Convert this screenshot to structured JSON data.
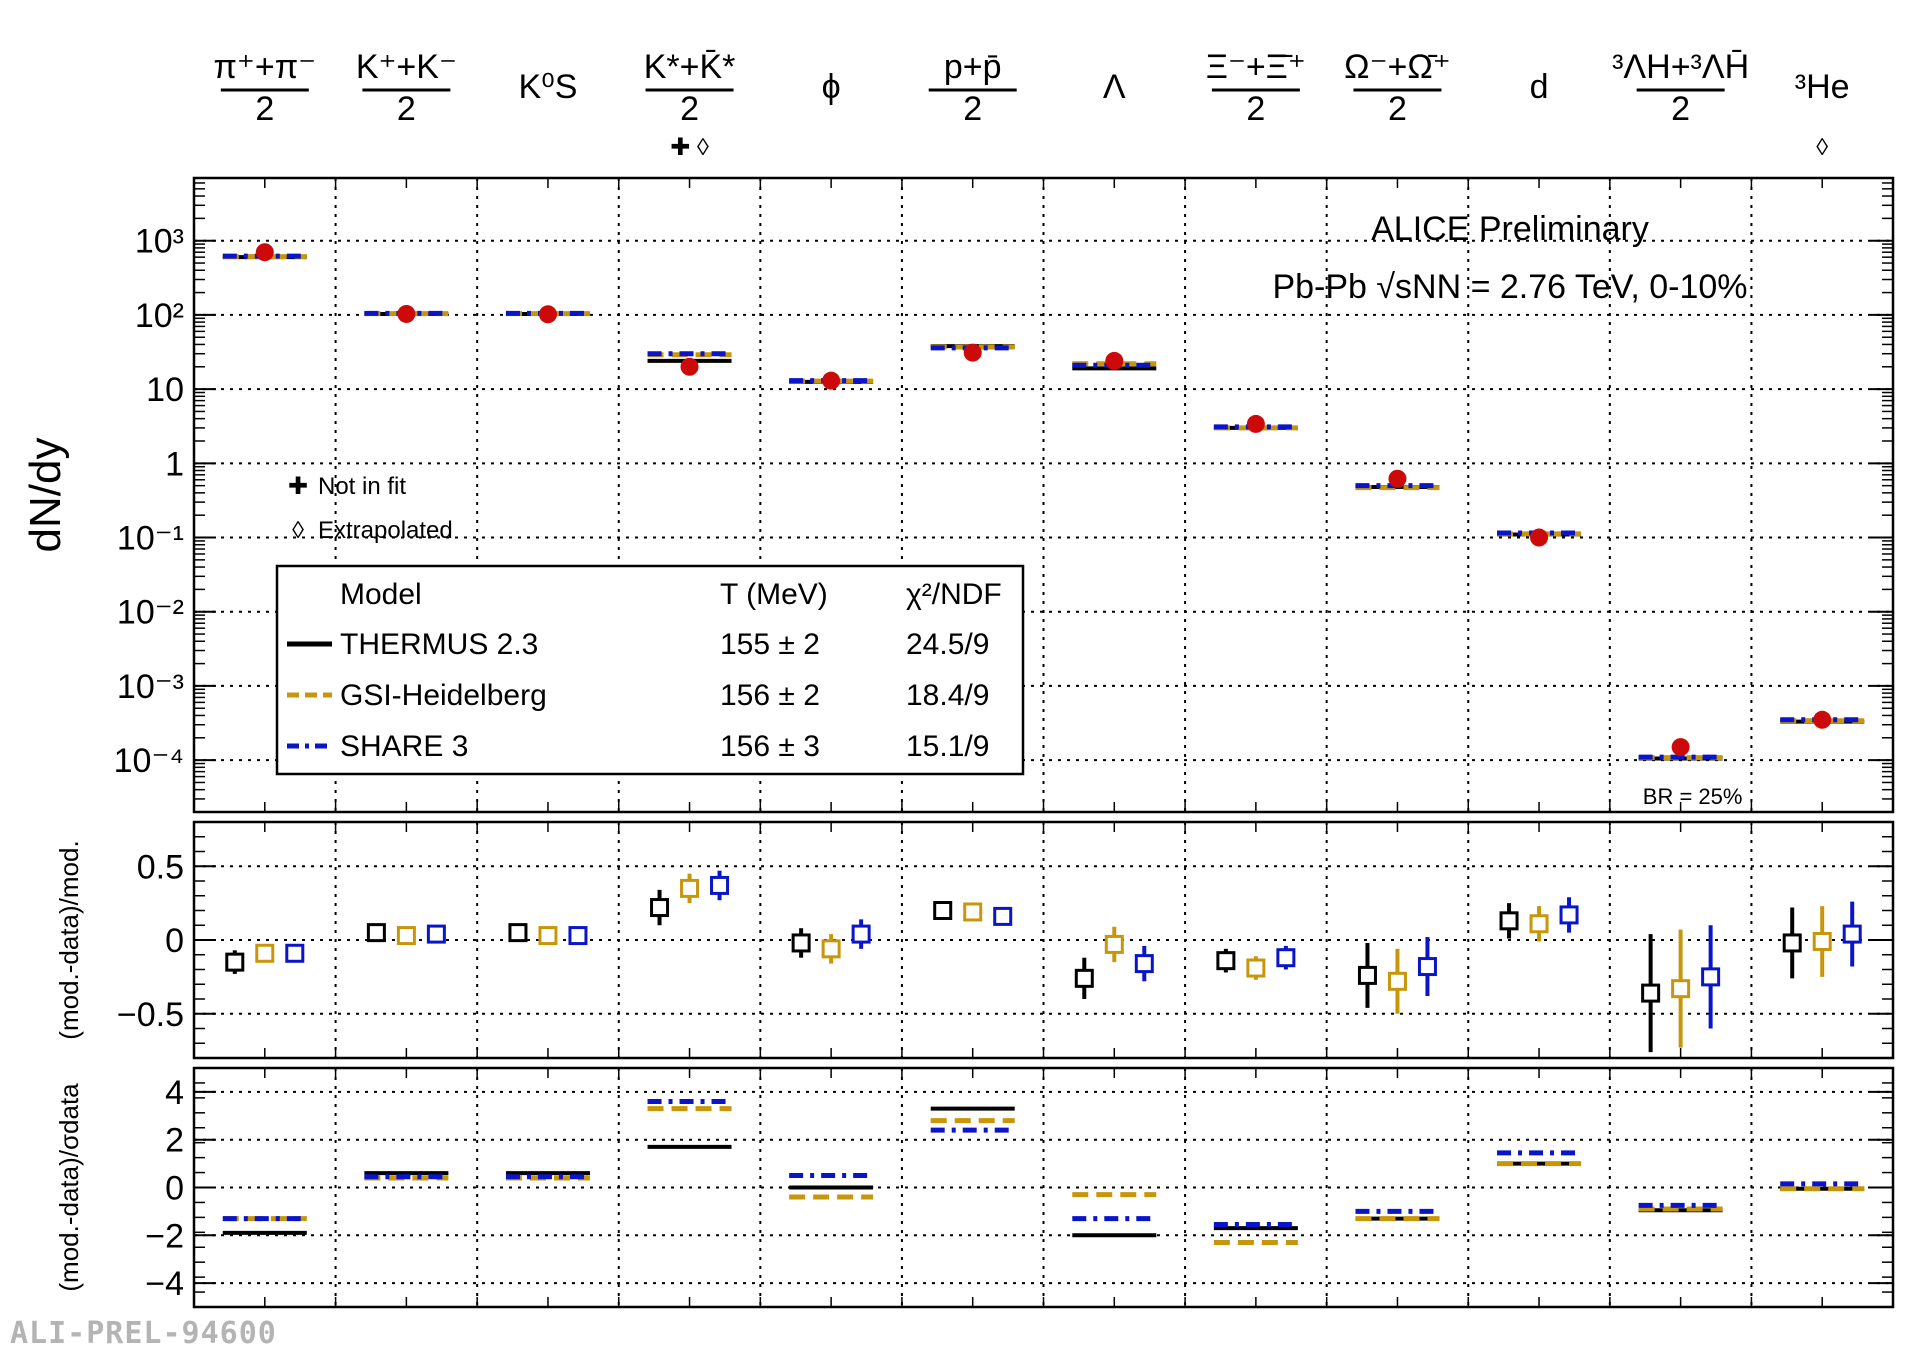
{
  "chart_data": {
    "type": "scatter",
    "categories": [
      {
        "top": "π⁺+π⁻",
        "bottom": "2",
        "frac": true,
        "markers": ""
      },
      {
        "top": "K⁺+K⁻",
        "bottom": "2",
        "frac": true,
        "markers": ""
      },
      {
        "top": "K⁰S",
        "bottom": "",
        "frac": false,
        "markers": ""
      },
      {
        "top": "K*+K̄*",
        "bottom": "2",
        "frac": true,
        "markers": "✚ ◊"
      },
      {
        "top": "ϕ",
        "bottom": "",
        "frac": false,
        "markers": ""
      },
      {
        "top": "p+p̄",
        "bottom": "2",
        "frac": true,
        "markers": ""
      },
      {
        "top": "Λ",
        "bottom": "",
        "frac": false,
        "markers": ""
      },
      {
        "top": "Ξ⁻+Ξ̄⁺",
        "bottom": "2",
        "frac": true,
        "markers": ""
      },
      {
        "top": "Ω⁻+Ω̄⁺",
        "bottom": "2",
        "frac": true,
        "markers": ""
      },
      {
        "top": "d",
        "bottom": "",
        "frac": false,
        "markers": ""
      },
      {
        "top": "³ΛH+³ΛH̄",
        "bottom": "2",
        "frac": true,
        "markers": ""
      },
      {
        "top": "³He",
        "bottom": "",
        "frac": false,
        "markers": "◊"
      }
    ],
    "title_lines": [
      "ALICE Preliminary",
      "Pb-Pb √sNN = 2.76 TeV, 0-10%"
    ],
    "panels": [
      {
        "id": "yields",
        "ylabel": "dN/dy",
        "yscale": "log",
        "ylim": [
          2e-05,
          7000
        ],
        "yticks": [
          [
            "10³",
            1000
          ],
          [
            "10²",
            100
          ],
          [
            "10",
            10
          ],
          [
            "1",
            1
          ],
          [
            "10⁻¹",
            0.1
          ],
          [
            "10⁻²",
            0.01
          ],
          [
            "10⁻³",
            0.001
          ],
          [
            "10⁻⁴",
            0.0001
          ]
        ],
        "data": [
          700,
          103,
          102,
          20,
          13,
          31,
          24,
          3.4,
          0.62,
          0.1,
          0.00015,
          0.00035
        ],
        "models": {
          "THERMUS 2.3": [
            600,
            103,
            103,
            24,
            12.5,
            38,
            19,
            3.0,
            0.48,
            0.11,
            0.000105,
            0.00033
          ],
          "GSI-Heidelberg": [
            610,
            104,
            104,
            29,
            12.8,
            37,
            22,
            3.0,
            0.47,
            0.112,
            0.000108,
            0.00034
          ],
          "SHARE 3": [
            620,
            105,
            105,
            30,
            13.0,
            36,
            21,
            3.1,
            0.5,
            0.115,
            0.00011,
            0.00035
          ]
        },
        "annotation": "BR = 25%"
      },
      {
        "id": "ratio",
        "ylabel": "(mod.-data)/mod.",
        "yscale": "linear",
        "ylim": [
          -0.8,
          0.8
        ],
        "yticks": [
          [
            "0.5",
            0.5
          ],
          [
            "0",
            0
          ],
          [
            "−0.5",
            -0.5
          ]
        ],
        "models": {
          "THERMUS 2.3": {
            "values": [
              -0.15,
              0.05,
              0.05,
              0.22,
              -0.02,
              0.2,
              -0.26,
              -0.14,
              -0.24,
              0.13,
              -0.36,
              -0.02
            ],
            "errors": [
              0.08,
              0.06,
              0.06,
              0.12,
              0.1,
              0.05,
              0.14,
              0.08,
              0.22,
              0.12,
              0.4,
              0.24
            ]
          },
          "GSI-Heidelberg": {
            "values": [
              -0.09,
              0.03,
              0.03,
              0.35,
              -0.06,
              0.19,
              -0.03,
              -0.19,
              -0.28,
              0.11,
              -0.33,
              -0.01
            ],
            "errors": [
              0.06,
              0.06,
              0.06,
              0.1,
              0.1,
              0.05,
              0.12,
              0.08,
              0.22,
              0.12,
              0.4,
              0.24
            ]
          },
          "SHARE 3": {
            "values": [
              -0.09,
              0.04,
              0.03,
              0.37,
              0.04,
              0.16,
              -0.16,
              -0.12,
              -0.18,
              0.17,
              -0.25,
              0.04
            ],
            "errors": [
              0.06,
              0.06,
              0.06,
              0.1,
              0.1,
              0.05,
              0.12,
              0.08,
              0.2,
              0.12,
              0.35,
              0.22
            ]
          }
        }
      },
      {
        "id": "pull",
        "ylabel": "(mod.-data)/σdata",
        "yscale": "linear",
        "ylim": [
          -5,
          5
        ],
        "yticks": [
          [
            "4",
            4
          ],
          [
            "2",
            2
          ],
          [
            "0",
            0
          ],
          [
            "−2",
            -2
          ],
          [
            "−4",
            -4
          ]
        ],
        "models": {
          "THERMUS 2.3": [
            -1.9,
            0.6,
            0.6,
            1.7,
            0.0,
            3.3,
            -2.0,
            -1.7,
            -1.3,
            1.0,
            -0.95,
            -0.05
          ],
          "GSI-Heidelberg": [
            -1.3,
            0.4,
            0.4,
            3.3,
            -0.4,
            2.8,
            -0.3,
            -2.3,
            -1.3,
            1.0,
            -0.9,
            -0.05
          ],
          "SHARE 3": [
            -1.3,
            0.45,
            0.45,
            3.6,
            0.5,
            2.4,
            -1.3,
            -1.55,
            -1.0,
            1.45,
            -0.75,
            0.15
          ]
        }
      }
    ],
    "legend": {
      "markers": [
        {
          "symbol": "✚",
          "label": "Not in fit"
        },
        {
          "symbol": "◊",
          "label": "Extrapolated"
        }
      ],
      "header": [
        "Model",
        "T (MeV)",
        "χ²/NDF"
      ],
      "rows": [
        {
          "name": "THERMUS 2.3",
          "T": "155 ± 2",
          "chi2": "24.5/9",
          "color": "#000000",
          "style": "solid"
        },
        {
          "name": "GSI-Heidelberg",
          "T": "156 ± 2",
          "chi2": "18.4/9",
          "color": "#c8960a",
          "style": "dashed"
        },
        {
          "name": "SHARE 3",
          "T": "156 ± 3",
          "chi2": "15.1/9",
          "color": "#0a14c8",
          "style": "dashdot"
        }
      ]
    },
    "colors": {
      "data": "#cc0a0a",
      "THERMUS 2.3": "#000000",
      "GSI-Heidelberg": "#c8960a",
      "SHARE 3": "#0a14c8"
    },
    "grid": true
  },
  "watermark": "ALI-PREL-94600"
}
